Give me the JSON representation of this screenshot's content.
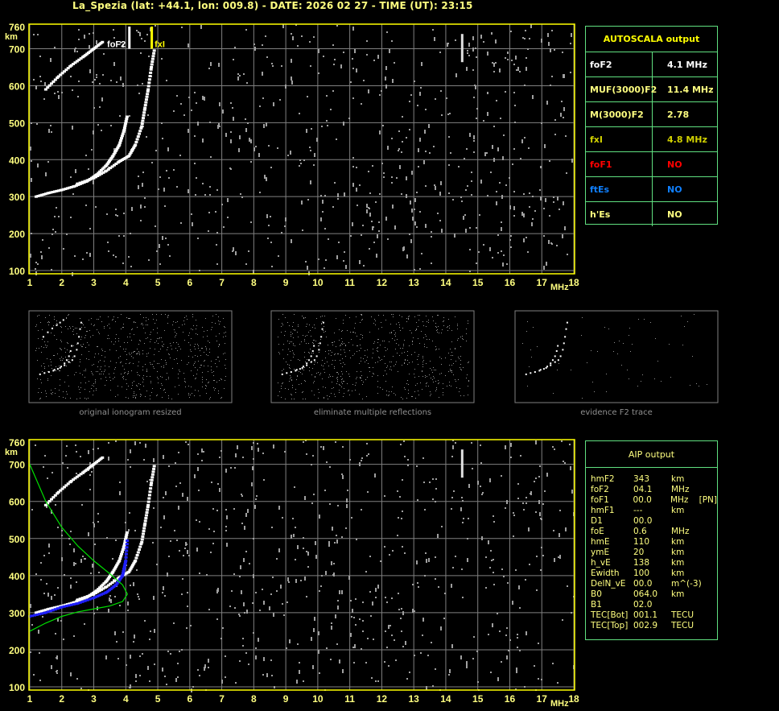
{
  "header": {
    "title": "La_Spezia (lat: +44.1, lon: 009.8) - DATE: 2026 02 27 - TIME (UT): 23:15"
  },
  "colors": {
    "axis": "#ffff00",
    "grid": "#808080",
    "trace": "#ffffff",
    "table_border": "#60e080",
    "profile": "#00e000",
    "aip_trace": "#2020ff"
  },
  "autoscala": {
    "title": "AUTOSCALA output",
    "rows": [
      {
        "key": "foF2",
        "value": "4.1 MHz",
        "color": "#ffffff"
      },
      {
        "key": "MUF(3000)F2",
        "value": "11.4 MHz",
        "color": "#ffff80"
      },
      {
        "key": "M(3000)F2",
        "value": "2.78",
        "color": "#ffff80"
      },
      {
        "key": "fxI",
        "value": "4.8 MHz",
        "color": "#d0d000"
      },
      {
        "key": "foF1",
        "value": "NO",
        "color": "#ff0000"
      },
      {
        "key": "ftEs",
        "value": "NO",
        "color": "#1080ff"
      },
      {
        "key": "h'Es",
        "value": "NO",
        "color": "#ffff80"
      }
    ]
  },
  "aip": {
    "title": "AIP output",
    "rows": [
      [
        "hmF2",
        "343",
        "km",
        ""
      ],
      [
        "foF2",
        "04.1",
        "MHz",
        ""
      ],
      [
        "foF1",
        "00.0",
        "MHz",
        "[PN]"
      ],
      [
        "hmF1",
        "---",
        "km",
        ""
      ],
      [
        "D1",
        "00.0",
        "",
        ""
      ],
      [
        "foE",
        "0.6",
        "MHz",
        ""
      ],
      [
        "hmE",
        "110",
        "km",
        ""
      ],
      [
        "ymE",
        "20",
        "km",
        ""
      ],
      [
        "h_vE",
        "138",
        "km",
        ""
      ],
      [
        "Ewidth",
        "100",
        "km",
        ""
      ],
      [
        "DelN_vE",
        "00.0",
        "m^(-3)",
        ""
      ],
      [
        "B0",
        "064.0",
        "km",
        ""
      ],
      [
        "B1",
        "02.0",
        "",
        ""
      ],
      [
        "TEC[Bot]",
        "001.1",
        "TECU",
        ""
      ],
      [
        "TEC[Top]",
        "002.9",
        "TECU",
        ""
      ]
    ]
  },
  "thumbnails": [
    {
      "caption": "original ionogram resized"
    },
    {
      "caption": "eliminate multiple reflections"
    },
    {
      "caption": "evidence F2 trace"
    }
  ],
  "chart_data": [
    {
      "type": "scatter",
      "title": "",
      "xlabel": "MHz",
      "ylabel": "km",
      "xlim": [
        1,
        18
      ],
      "ylim": [
        100,
        760
      ],
      "x_ticks": [
        1,
        2,
        3,
        4,
        5,
        6,
        7,
        8,
        9,
        10,
        11,
        12,
        13,
        14,
        15,
        16,
        17,
        18
      ],
      "y_ticks": [
        100,
        200,
        300,
        400,
        500,
        600,
        700,
        760
      ],
      "grid": true,
      "markers": [
        {
          "label": "foF2",
          "x": 4.1,
          "color": "#ffffff"
        },
        {
          "label": "fxI",
          "x": 4.8,
          "color": "#ffff00"
        }
      ],
      "series": [
        {
          "points": [
            [
              1.2,
              300
            ],
            [
              1.6,
              310
            ],
            [
              2.0,
              318
            ],
            [
              2.4,
              328
            ],
            [
              2.8,
              342
            ],
            [
              3.1,
              360
            ],
            [
              3.4,
              385
            ],
            [
              3.6,
              410
            ],
            [
              3.8,
              440
            ],
            [
              3.95,
              480
            ],
            [
              4.05,
              520
            ]
          ]
        },
        {
          "points": [
            [
              2.5,
              335
            ],
            [
              3.0,
              350
            ],
            [
              3.4,
              370
            ],
            [
              3.8,
              395
            ],
            [
              4.1,
              410
            ],
            [
              4.3,
              440
            ],
            [
              4.5,
              490
            ],
            [
              4.6,
              540
            ],
            [
              4.7,
              590
            ],
            [
              4.8,
              650
            ],
            [
              4.9,
              700
            ]
          ]
        },
        {
          "points": [
            [
              1.5,
              590
            ],
            [
              1.9,
              625
            ],
            [
              2.3,
              655
            ],
            [
              2.7,
              680
            ],
            [
              3.0,
              700
            ],
            [
              3.3,
              720
            ]
          ]
        }
      ]
    },
    {
      "type": "scatter",
      "title": "",
      "xlabel": "MHz",
      "ylabel": "km",
      "xlim": [
        1,
        18
      ],
      "ylim": [
        100,
        760
      ],
      "x_ticks": [
        1,
        2,
        3,
        4,
        5,
        6,
        7,
        8,
        9,
        10,
        11,
        12,
        13,
        14,
        15,
        16,
        17,
        18
      ],
      "y_ticks": [
        100,
        200,
        300,
        400,
        500,
        600,
        700,
        760
      ],
      "grid": true,
      "series": [
        {
          "points": [
            [
              1.2,
              300
            ],
            [
              1.6,
              310
            ],
            [
              2.0,
              318
            ],
            [
              2.4,
              328
            ],
            [
              2.8,
              342
            ],
            [
              3.1,
              360
            ],
            [
              3.4,
              385
            ],
            [
              3.6,
              410
            ],
            [
              3.8,
              440
            ],
            [
              3.95,
              480
            ],
            [
              4.05,
              520
            ]
          ]
        },
        {
          "points": [
            [
              2.5,
              335
            ],
            [
              3.0,
              350
            ],
            [
              3.4,
              370
            ],
            [
              3.8,
              395
            ],
            [
              4.1,
              410
            ],
            [
              4.3,
              440
            ],
            [
              4.5,
              490
            ],
            [
              4.6,
              540
            ],
            [
              4.7,
              590
            ],
            [
              4.8,
              650
            ],
            [
              4.9,
              700
            ]
          ]
        },
        {
          "points": [
            [
              1.5,
              590
            ],
            [
              1.9,
              625
            ],
            [
              2.3,
              655
            ],
            [
              2.7,
              680
            ],
            [
              3.0,
              700
            ],
            [
              3.3,
              720
            ]
          ]
        },
        {
          "name": "",
          "color": "#2020ff",
          "points": [
            [
              1.0,
              290
            ],
            [
              1.5,
              300
            ],
            [
              2.0,
              315
            ],
            [
              2.5,
              325
            ],
            [
              3.0,
              340
            ],
            [
              3.4,
              355
            ],
            [
              3.7,
              375
            ],
            [
              3.9,
              400
            ],
            [
              4.0,
              440
            ],
            [
              4.05,
              500
            ]
          ]
        },
        {
          "name": "",
          "color": "#00e000",
          "points": [
            [
              1.0,
              700
            ],
            [
              1.5,
              600
            ],
            [
              2.0,
              530
            ],
            [
              2.5,
              480
            ],
            [
              3.0,
              440
            ],
            [
              3.5,
              405
            ],
            [
              3.9,
              375
            ],
            [
              4.05,
              350
            ],
            [
              3.9,
              330
            ],
            [
              3.5,
              318
            ],
            [
              3.0,
              310
            ],
            [
              2.5,
              302
            ],
            [
              2.0,
              290
            ],
            [
              1.5,
              272
            ],
            [
              1.0,
              250
            ]
          ]
        }
      ]
    }
  ]
}
